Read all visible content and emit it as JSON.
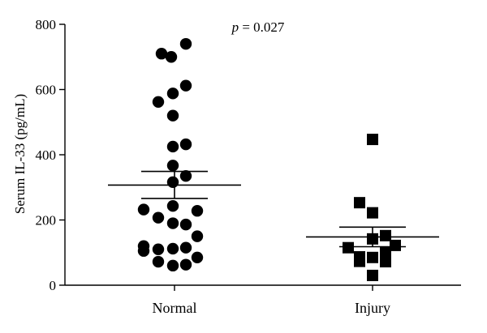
{
  "chart_data": {
    "type": "scatter",
    "title": "",
    "xlabel": "",
    "ylabel": "Serum IL-33 (pg/mL)",
    "ylim": [
      0,
      800
    ],
    "yticks": [
      0,
      200,
      400,
      600,
      800
    ],
    "grid": false,
    "annotation": {
      "italic": "p",
      "text": " = 0.027"
    },
    "categories": [
      "Normal",
      "Injury"
    ],
    "series": [
      {
        "category": "Normal",
        "marker": "circle",
        "mean": 307,
        "sem_lower": 266,
        "sem_upper": 349,
        "points": [
          {
            "jitter": -0.4,
            "value": 710
          },
          {
            "jitter": -0.1,
            "value": 700
          },
          {
            "jitter": 0.35,
            "value": 740
          },
          {
            "jitter": 0.35,
            "value": 612
          },
          {
            "jitter": -0.05,
            "value": 588
          },
          {
            "jitter": -0.5,
            "value": 562
          },
          {
            "jitter": -0.05,
            "value": 520
          },
          {
            "jitter": -0.05,
            "value": 425
          },
          {
            "jitter": 0.35,
            "value": 432
          },
          {
            "jitter": -0.05,
            "value": 367
          },
          {
            "jitter": 0.35,
            "value": 335
          },
          {
            "jitter": -0.05,
            "value": 316
          },
          {
            "jitter": -0.05,
            "value": 243
          },
          {
            "jitter": -0.95,
            "value": 232
          },
          {
            "jitter": 0.7,
            "value": 228
          },
          {
            "jitter": -0.5,
            "value": 207
          },
          {
            "jitter": -0.05,
            "value": 190
          },
          {
            "jitter": 0.35,
            "value": 186
          },
          {
            "jitter": 0.7,
            "value": 150
          },
          {
            "jitter": -0.95,
            "value": 120
          },
          {
            "jitter": -0.95,
            "value": 105
          },
          {
            "jitter": -0.5,
            "value": 110
          },
          {
            "jitter": -0.05,
            "value": 112
          },
          {
            "jitter": 0.35,
            "value": 115
          },
          {
            "jitter": 0.7,
            "value": 85
          },
          {
            "jitter": -0.5,
            "value": 72
          },
          {
            "jitter": -0.05,
            "value": 60
          },
          {
            "jitter": 0.35,
            "value": 63
          }
        ]
      },
      {
        "category": "Injury",
        "marker": "square",
        "mean": 148,
        "sem_lower": 118,
        "sem_upper": 178,
        "points": [
          {
            "jitter": 0.0,
            "value": 447
          },
          {
            "jitter": -0.4,
            "value": 253
          },
          {
            "jitter": 0.0,
            "value": 222
          },
          {
            "jitter": 0.4,
            "value": 152
          },
          {
            "jitter": 0.0,
            "value": 142
          },
          {
            "jitter": 0.7,
            "value": 122
          },
          {
            "jitter": -0.75,
            "value": 115
          },
          {
            "jitter": 0.4,
            "value": 100
          },
          {
            "jitter": -0.4,
            "value": 87
          },
          {
            "jitter": 0.0,
            "value": 85
          },
          {
            "jitter": -0.4,
            "value": 73
          },
          {
            "jitter": 0.4,
            "value": 72
          },
          {
            "jitter": 0.0,
            "value": 30
          }
        ]
      }
    ]
  }
}
